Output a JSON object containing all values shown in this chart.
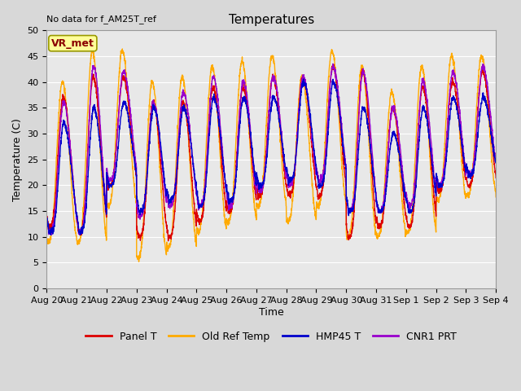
{
  "title": "Temperatures",
  "xlabel": "Time",
  "ylabel": "Temperature (C)",
  "annotation_text": "No data for f_AM25T_ref",
  "box_label": "VR_met",
  "ylim": [
    0,
    50
  ],
  "yticks": [
    0,
    5,
    10,
    15,
    20,
    25,
    30,
    35,
    40,
    45,
    50
  ],
  "num_days": 15,
  "num_points": 3000,
  "series": {
    "panel_t": {
      "label": "Panel T",
      "color": "#dd0000",
      "lw": 1.0
    },
    "old_ref": {
      "label": "Old Ref Temp",
      "color": "#ffaa00",
      "lw": 1.0
    },
    "hmp45": {
      "label": "HMP45 T",
      "color": "#0000cc",
      "lw": 1.0
    },
    "cnr1": {
      "label": "CNR1 PRT",
      "color": "#9900cc",
      "lw": 1.0
    }
  },
  "background_color": "#e8e8e8",
  "grid_color": "#ffffff",
  "title_fontsize": 11,
  "label_fontsize": 9,
  "tick_label_fontsize": 8,
  "legend_fontsize": 9,
  "box_label_color": "#8b0000",
  "box_bg_color": "#ffff99",
  "box_edge_color": "#999900",
  "xtick_labels": [
    "Aug 20",
    "Aug 21",
    "Aug 22",
    "Aug 23",
    "Aug 24",
    "Aug 25",
    "Aug 26",
    "Aug 27",
    "Aug 28",
    "Aug 29",
    "Aug 30",
    "Aug 31",
    "Sep 1",
    "Sep 2",
    "Sep 3",
    "Sep 4"
  ],
  "fig_facecolor": "#d8d8d8"
}
